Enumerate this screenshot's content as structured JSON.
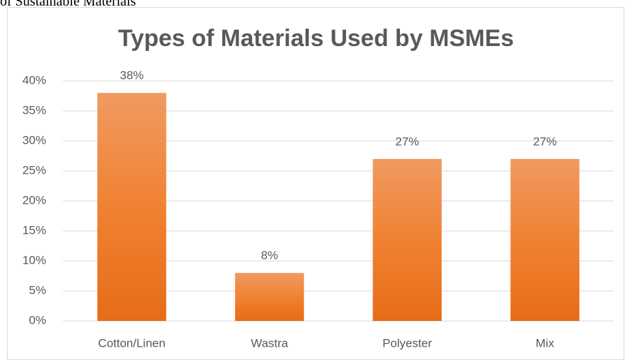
{
  "caption": "of Sustainable Materials",
  "chart_data": {
    "type": "bar",
    "title": "Types of Materials Used by MSMEs",
    "categories": [
      "Cotton/Linen",
      "Wastra",
      "Polyester",
      "Mix"
    ],
    "values": [
      38,
      8,
      27,
      27
    ],
    "value_labels": [
      "38%",
      "8%",
      "27%",
      "27%"
    ],
    "color": "#ed7d31",
    "ylim": [
      0,
      40
    ],
    "yticks": [
      {
        "value": 0,
        "label": "0%"
      },
      {
        "value": 5,
        "label": "5%"
      },
      {
        "value": 10,
        "label": "10%"
      },
      {
        "value": 15,
        "label": "15%"
      },
      {
        "value": 20,
        "label": "20%"
      },
      {
        "value": 25,
        "label": "25%"
      },
      {
        "value": 30,
        "label": "30%"
      },
      {
        "value": 35,
        "label": "35%"
      },
      {
        "value": 40,
        "label": "40%"
      }
    ],
    "grid": true
  }
}
